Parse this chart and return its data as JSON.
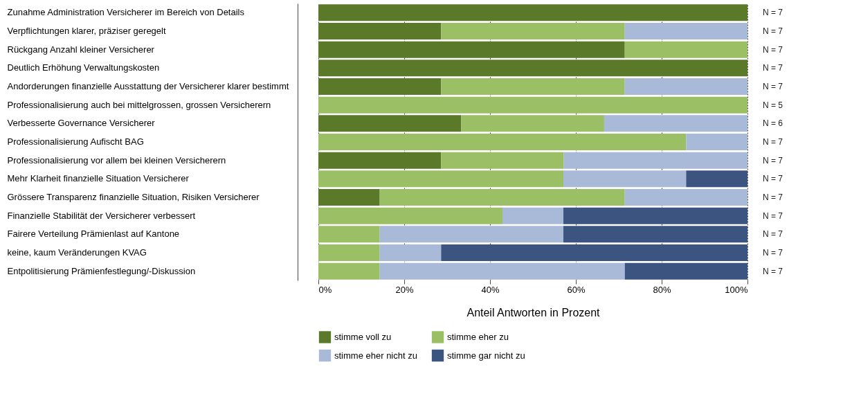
{
  "chart_data": {
    "type": "bar",
    "orientation": "horizontal",
    "stacked": true,
    "xlabel": "Anteil Antworten in Prozent",
    "categories": [
      "Zunahme Administration Versicherer im Bereich von Details",
      "Verpflichtungen klarer, präziser geregelt",
      "Rückgang Anzahl kleiner Versicherer",
      "Deutlich Erhöhung Verwaltungskosten",
      "Andorderungen finanzielle Ausstattung der Versicherer klarer bestimmt",
      "Professionalisierung auch bei mittelgrossen, grossen Versicherern",
      "Verbesserte Governance Versicherer",
      "Professionalisierung Aufischt BAG",
      "Professionalisierung vor allem bei kleinen Versicherern",
      "Mehr Klarheit finanzielle Situation Versicherer",
      "Grössere Transparenz finanzielle Situation, Risiken Versicherer",
      "Finanzielle Stabilität der Versicherer verbessert",
      "Fairere Verteilung Prämienlast auf Kantone",
      "keine, kaum Veränderungen KVAG",
      "Entpolitisierung Prämienfestlegung/-Diskussion"
    ],
    "series": [
      {
        "name": "stimme voll zu",
        "color": "#5a7a2a",
        "values": [
          100,
          28.6,
          71.4,
          100,
          28.6,
          0,
          33.3,
          0,
          28.6,
          0,
          14.3,
          0,
          0,
          0,
          0
        ]
      },
      {
        "name": "stimme eher zu",
        "color": "#9bbf65",
        "values": [
          0,
          42.8,
          28.6,
          0,
          42.8,
          100,
          33.3,
          85.7,
          28.6,
          57.1,
          57.1,
          42.9,
          14.3,
          14.3,
          14.3
        ]
      },
      {
        "name": "stimme eher nicht zu",
        "color": "#a9b9d8",
        "values": [
          0,
          28.6,
          0,
          0,
          28.6,
          0,
          33.4,
          14.3,
          42.8,
          28.6,
          28.6,
          14.2,
          42.8,
          14.3,
          57.1
        ]
      },
      {
        "name": "stimme gar nicht zu",
        "color": "#3c5580",
        "values": [
          0,
          0,
          0,
          0,
          0,
          0,
          0,
          0,
          0,
          14.3,
          0,
          42.9,
          42.9,
          71.4,
          28.6
        ]
      }
    ],
    "xlim": [
      0,
      100
    ],
    "xticks": [
      {
        "value": 0,
        "label": "0%"
      },
      {
        "value": 20,
        "label": "20%"
      },
      {
        "value": 40,
        "label": "40%"
      },
      {
        "value": 60,
        "label": "60%"
      },
      {
        "value": 80,
        "label": "80%"
      },
      {
        "value": 100,
        "label": "100%"
      }
    ],
    "grid": "x",
    "legend": "bottom",
    "annotations": [
      "N = 7",
      "N = 7",
      "N = 7",
      "N = 7",
      "N = 7",
      "N = 5",
      "N = 6",
      "N = 7",
      "N = 7",
      "N = 7",
      "N = 7",
      "N = 7",
      "N = 7",
      "N = 7",
      "N = 7"
    ]
  }
}
